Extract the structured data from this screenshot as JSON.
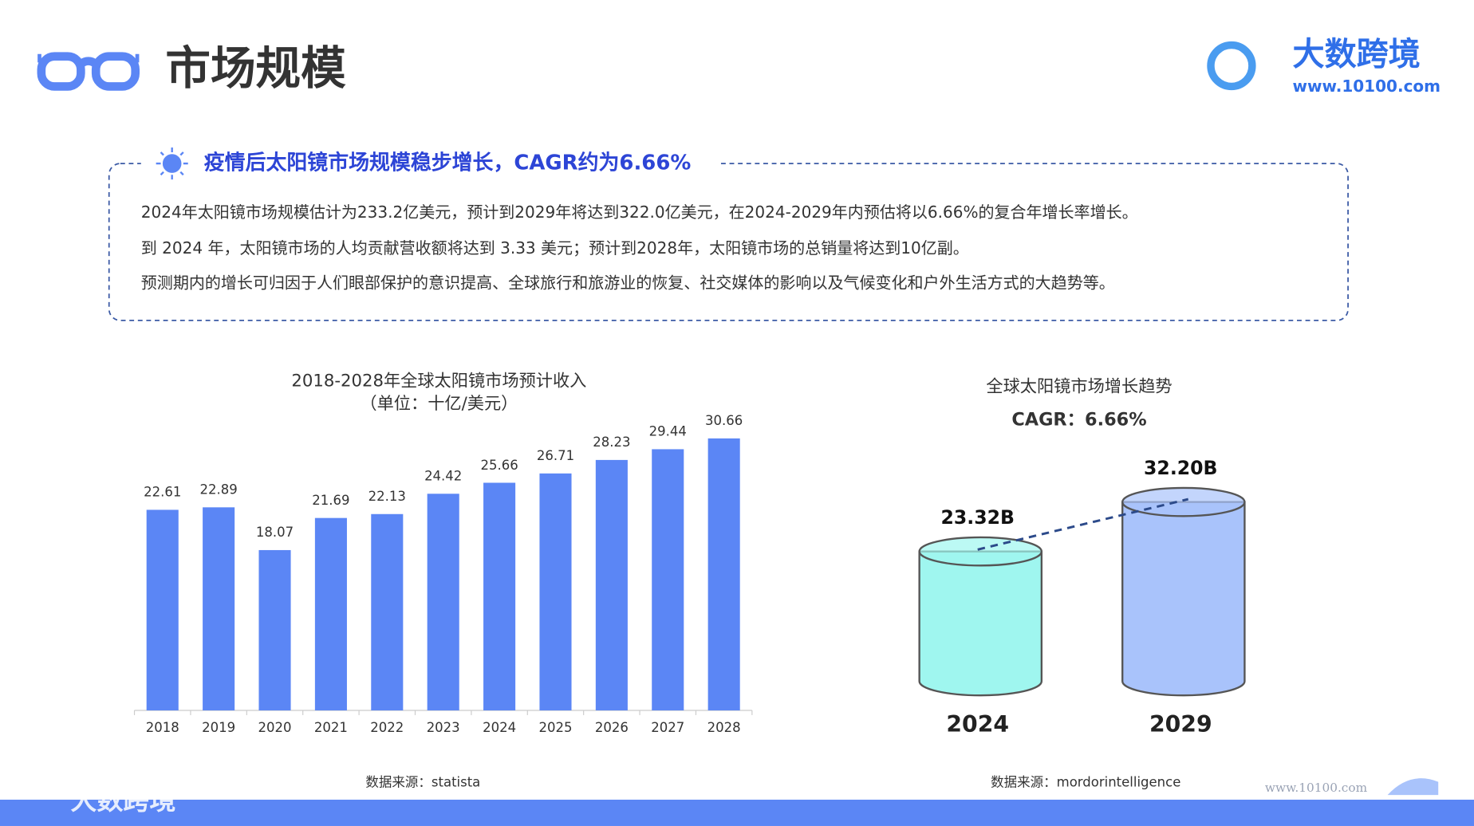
{
  "header": {
    "title": "市场规模",
    "logo": "大数跨境",
    "url": "www.10100.com"
  },
  "summary": {
    "heading": "疫情后太阳镜市场规模稳步增长，CAGR约为6.66%",
    "paragraphs": [
      "2024年太阳镜市场规模估计为233.2亿美元，预计到2029年将达到322.0亿美元，在2024-2029年内预估将以6.66%的复合年增长率增长。",
      "到 2024 年，太阳镜市场的人均贡献营收额将达到 3.33 美元；预计到2028年，太阳镜市场的总销量将达到10亿副。",
      "预测期内的增长可归因于人们眼部保护的意识提高、全球旅行和旅游业的恢复、社交媒体的影响以及气候变化和户外生活方式的大趋势等。"
    ]
  },
  "chart_data": [
    {
      "type": "bar",
      "title": "2018-2028年全球太阳镜市场预计收入",
      "subtitle": "（单位：十亿/美元）",
      "categories": [
        "2018",
        "2019",
        "2020",
        "2021",
        "2022",
        "2023",
        "2024",
        "2025",
        "2026",
        "2027",
        "2028"
      ],
      "values": [
        22.61,
        22.89,
        18.07,
        21.69,
        22.13,
        24.42,
        25.66,
        26.71,
        28.23,
        29.44,
        30.66
      ],
      "color": "#5b86f5",
      "ylim": [
        0,
        34
      ],
      "source": "数据来源：statista"
    },
    {
      "type": "cylinder",
      "title": "全球太阳镜市场增长趋势",
      "subtitle": "CAGR：6.66%",
      "categories": [
        "2024",
        "2029"
      ],
      "values": [
        23.32,
        32.2
      ],
      "value_labels": [
        "23.32B",
        "32.20B"
      ],
      "colors": [
        "#9ff6ef",
        "#a9c3fb"
      ],
      "ylim": [
        0,
        40
      ],
      "source": "数据来源：mordorintelligence"
    }
  ],
  "footer": {
    "logo": "大数跨境",
    "url": "www.10100.com"
  }
}
